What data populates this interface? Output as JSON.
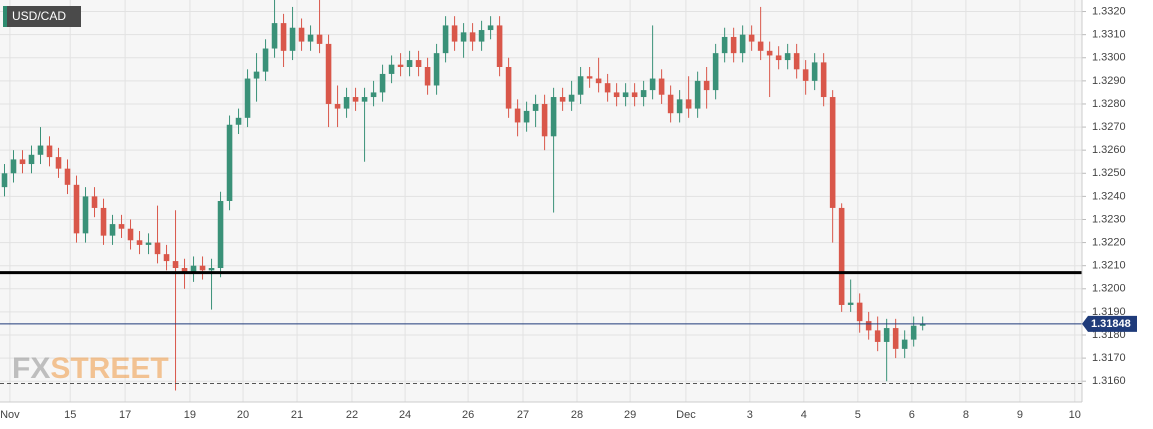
{
  "chart_data": {
    "type": "candlestick",
    "title": "USD/CAD",
    "watermark": [
      "FX",
      "STREET"
    ],
    "up_color": "#3a9178",
    "down_color": "#d9574a",
    "open": [
      1.3244,
      1.325,
      1.3256,
      1.3254,
      1.3258,
      1.3262,
      1.3257,
      1.3252,
      1.3245,
      1.3224,
      1.324,
      1.3235,
      1.3223,
      1.3228,
      1.3226,
      1.3221,
      1.3219,
      1.322,
      1.3215,
      1.3212,
      1.3209,
      1.3207,
      1.321,
      1.3208,
      1.3209,
      1.3238,
      1.3271,
      1.3274,
      1.3291,
      1.3294,
      1.3304,
      1.3315,
      1.3303,
      1.3313,
      1.3307,
      1.331,
      1.3306,
      1.328,
      1.3278,
      1.3283,
      1.3281,
      1.3283,
      1.3285,
      1.3293,
      1.3297,
      1.3296,
      1.3299,
      1.3296,
      1.3288,
      1.3302,
      1.3314,
      1.3307,
      1.3311,
      1.3307,
      1.3312,
      1.3314,
      1.3296,
      1.3278,
      1.3272,
      1.3277,
      1.328,
      1.3266,
      1.3283,
      1.3281,
      1.3284,
      1.3292,
      1.3291,
      1.3289,
      1.3285,
      1.3283,
      1.3285,
      1.3283,
      1.3286,
      1.3291,
      1.3284,
      1.3276,
      1.3282,
      1.3278,
      1.329,
      1.3286,
      1.3302,
      1.3309,
      1.3302,
      1.331,
      1.3307,
      1.3303,
      1.3301,
      1.3299,
      1.3302,
      1.3295,
      1.329,
      1.3298,
      1.3283,
      1.3235,
      1.3193,
      1.3194,
      1.3186,
      1.3182,
      1.3177,
      1.3183,
      1.3174,
      1.3178,
      1.3184
    ],
    "high": [
      1.3254,
      1.326,
      1.326,
      1.3262,
      1.327,
      1.3266,
      1.3261,
      1.3256,
      1.3249,
      1.3244,
      1.3244,
      1.3239,
      1.3232,
      1.3232,
      1.323,
      1.3225,
      1.3224,
      1.3236,
      1.3219,
      1.3234,
      1.3213,
      1.3214,
      1.3214,
      1.3213,
      1.3242,
      1.3275,
      1.3278,
      1.3295,
      1.3302,
      1.3308,
      1.3325,
      1.3319,
      1.3322,
      1.3317,
      1.3314,
      1.3325,
      1.331,
      1.3288,
      1.3287,
      1.3287,
      1.3287,
      1.329,
      1.3297,
      1.3301,
      1.3302,
      1.3303,
      1.3303,
      1.33,
      1.3306,
      1.3318,
      1.3318,
      1.3315,
      1.3315,
      1.3316,
      1.3318,
      1.3318,
      1.33,
      1.3282,
      1.3281,
      1.3284,
      1.3284,
      1.3287,
      1.3287,
      1.329,
      1.3296,
      1.3296,
      1.33,
      1.3293,
      1.3289,
      1.3289,
      1.3289,
      1.329,
      1.3314,
      1.3295,
      1.3288,
      1.3286,
      1.3292,
      1.3294,
      1.3296,
      1.3306,
      1.3313,
      1.3313,
      1.3314,
      1.3314,
      1.3322,
      1.3307,
      1.3305,
      1.3306,
      1.3306,
      1.3299,
      1.3302,
      1.3302,
      1.3286,
      1.3237,
      1.3204,
      1.3198,
      1.319,
      1.3188,
      1.3187,
      1.3187,
      1.3182,
      1.3188,
      1.3188
    ],
    "low": [
      1.324,
      1.3246,
      1.325,
      1.325,
      1.3254,
      1.3253,
      1.3248,
      1.3241,
      1.322,
      1.322,
      1.3231,
      1.3219,
      1.3219,
      1.3222,
      1.3217,
      1.3215,
      1.3215,
      1.3211,
      1.3208,
      1.3156,
      1.32,
      1.3203,
      1.3204,
      1.3191,
      1.3205,
      1.3234,
      1.3267,
      1.327,
      1.3281,
      1.329,
      1.33,
      1.3296,
      1.3299,
      1.3303,
      1.3303,
      1.3302,
      1.327,
      1.327,
      1.3274,
      1.3277,
      1.3255,
      1.3279,
      1.3281,
      1.3289,
      1.3292,
      1.3292,
      1.3292,
      1.3284,
      1.3284,
      1.3298,
      1.3303,
      1.33,
      1.3303,
      1.3303,
      1.3308,
      1.3292,
      1.3274,
      1.3266,
      1.3268,
      1.327,
      1.326,
      1.3233,
      1.3277,
      1.3277,
      1.328,
      1.3287,
      1.3285,
      1.3281,
      1.3279,
      1.3279,
      1.3279,
      1.3279,
      1.3282,
      1.328,
      1.3272,
      1.3272,
      1.3274,
      1.3274,
      1.3278,
      1.3282,
      1.3298,
      1.3298,
      1.3298,
      1.3303,
      1.3299,
      1.3283,
      1.3295,
      1.3295,
      1.3291,
      1.3284,
      1.3286,
      1.3279,
      1.322,
      1.319,
      1.319,
      1.3181,
      1.3178,
      1.3173,
      1.316,
      1.317,
      1.317,
      1.3175,
      1.3182
    ],
    "close": [
      1.325,
      1.3256,
      1.3254,
      1.3258,
      1.3262,
      1.3257,
      1.3252,
      1.3245,
      1.3224,
      1.324,
      1.3235,
      1.3223,
      1.3228,
      1.3226,
      1.3221,
      1.3219,
      1.322,
      1.3215,
      1.3212,
      1.3209,
      1.3207,
      1.321,
      1.3208,
      1.3209,
      1.3238,
      1.3271,
      1.3274,
      1.3291,
      1.3294,
      1.3304,
      1.3315,
      1.3303,
      1.3313,
      1.3307,
      1.331,
      1.3306,
      1.328,
      1.3278,
      1.3283,
      1.3281,
      1.3283,
      1.3285,
      1.3293,
      1.3297,
      1.3296,
      1.3299,
      1.3296,
      1.3288,
      1.3302,
      1.3314,
      1.3307,
      1.3311,
      1.3307,
      1.3312,
      1.3314,
      1.3296,
      1.3278,
      1.3272,
      1.3277,
      1.328,
      1.3266,
      1.3283,
      1.3281,
      1.3284,
      1.3292,
      1.3291,
      1.3289,
      1.3285,
      1.3283,
      1.3285,
      1.3283,
      1.3286,
      1.3291,
      1.3284,
      1.3276,
      1.3282,
      1.3278,
      1.329,
      1.3286,
      1.3302,
      1.3309,
      1.3302,
      1.331,
      1.3307,
      1.3303,
      1.3301,
      1.3299,
      1.3302,
      1.3295,
      1.329,
      1.3298,
      1.3283,
      1.3235,
      1.3193,
      1.3194,
      1.3186,
      1.3182,
      1.3177,
      1.3183,
      1.3174,
      1.3178,
      1.3184,
      1.31848
    ],
    "hlines": [
      {
        "value": 1.3207,
        "color": "#000000",
        "style": "solid"
      },
      {
        "value": 1.31848,
        "color": "#1f3b7a",
        "style": "solid"
      },
      {
        "value": 1.3159,
        "color": "#555555",
        "style": "dashed"
      }
    ],
    "ylim": [
      1.3151,
      1.3325
    ],
    "yticks": [
      {
        "value": 1.316,
        "label": "1.3160"
      },
      {
        "value": 1.317,
        "label": "1.3170"
      },
      {
        "value": 1.318,
        "label": "1.3180"
      },
      {
        "value": 1.319,
        "label": "1.3190"
      },
      {
        "value": 1.32,
        "label": "1.3200"
      },
      {
        "value": 1.321,
        "label": "1.3210"
      },
      {
        "value": 1.322,
        "label": "1.3220"
      },
      {
        "value": 1.323,
        "label": "1.3230"
      },
      {
        "value": 1.324,
        "label": "1.3240"
      },
      {
        "value": 1.325,
        "label": "1.3250"
      },
      {
        "value": 1.326,
        "label": "1.3260"
      },
      {
        "value": 1.327,
        "label": "1.3270"
      },
      {
        "value": 1.328,
        "label": "1.3280"
      },
      {
        "value": 1.329,
        "label": "1.3290"
      },
      {
        "value": 1.33,
        "label": "1.3300"
      },
      {
        "value": 1.331,
        "label": "1.3310"
      },
      {
        "value": 1.332,
        "label": "1.3320"
      }
    ],
    "xlim": [
      -0.5,
      119.7
    ],
    "xticks": [
      {
        "value": 0.6,
        "label": "Nov"
      },
      {
        "value": 7.3,
        "label": "15"
      },
      {
        "value": 13.4,
        "label": "17"
      },
      {
        "value": 20.6,
        "label": "19"
      },
      {
        "value": 26.5,
        "label": "20"
      },
      {
        "value": 32.5,
        "label": "21"
      },
      {
        "value": 38.6,
        "label": "22"
      },
      {
        "value": 44.5,
        "label": "24"
      },
      {
        "value": 51.5,
        "label": "26"
      },
      {
        "value": 57.6,
        "label": "27"
      },
      {
        "value": 63.6,
        "label": "28"
      },
      {
        "value": 69.5,
        "label": "29"
      },
      {
        "value": 75.7,
        "label": "Dec"
      },
      {
        "value": 82.8,
        "label": "3"
      },
      {
        "value": 88.8,
        "label": "4"
      },
      {
        "value": 94.8,
        "label": "5"
      },
      {
        "value": 100.8,
        "label": "6"
      },
      {
        "value": 106.8,
        "label": "8"
      },
      {
        "value": 112.8,
        "label": "9"
      },
      {
        "value": 118.9,
        "label": "10"
      }
    ],
    "grid": true
  }
}
